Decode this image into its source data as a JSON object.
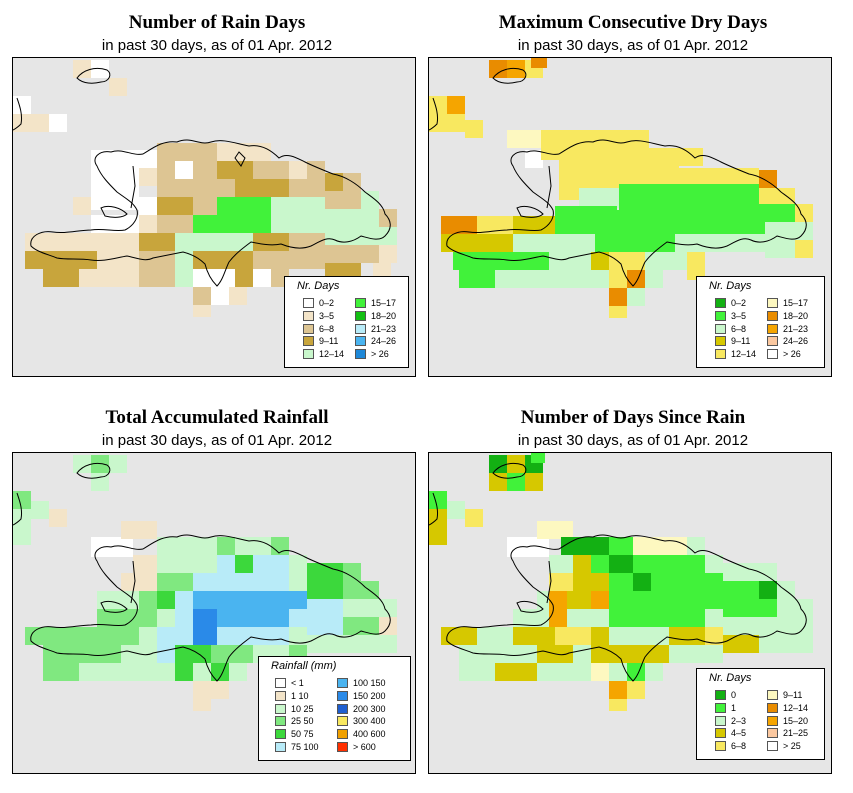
{
  "panels": [
    {
      "title": "Number of Rain Days",
      "subtitle": "in past 30 days, as of  01 Apr. 2012",
      "legend_title": "Nr. Days",
      "legend": [
        {
          "label": "0–2",
          "color": "#ffffff"
        },
        {
          "label": "3–5",
          "color": "#f3e4c8"
        },
        {
          "label": "6–8",
          "color": "#ddc593"
        },
        {
          "label": "9–11",
          "color": "#c8a53c"
        },
        {
          "label": "12–14",
          "color": "#c9f7cc"
        },
        {
          "label": "15–17",
          "color": "#41f23a"
        },
        {
          "label": "18–20",
          "color": "#13c013"
        },
        {
          "label": "21–23",
          "color": "#b8ebf8"
        },
        {
          "label": "24–26",
          "color": "#4ab4f0"
        },
        {
          "label": "> 26",
          "color": "#1e88d8"
        }
      ]
    },
    {
      "title": "Maximum Consecutive Dry Days",
      "subtitle": "in past 30 days, as of  01 Apr. 2012",
      "legend_title": "Nr. Days",
      "legend": [
        {
          "label": "0–2",
          "color": "#13b013"
        },
        {
          "label": "3–5",
          "color": "#41f23a"
        },
        {
          "label": "6–8",
          "color": "#c9f7cc"
        },
        {
          "label": "9–11",
          "color": "#d6c800"
        },
        {
          "label": "12–14",
          "color": "#f8e860"
        },
        {
          "label": "15–17",
          "color": "#fdf8c0"
        },
        {
          "label": "18–20",
          "color": "#e98c00"
        },
        {
          "label": "21–23",
          "color": "#f5a500"
        },
        {
          "label": "24–26",
          "color": "#fbc8a0"
        },
        {
          "label": "> 26",
          "color": "#ffffff"
        }
      ]
    },
    {
      "title": "Total Accumulated Rainfall",
      "subtitle": "in past 30 days, as of  01 Apr. 2012",
      "legend_title": "Rainfall (mm)",
      "legend": [
        {
          "label": "< 1",
          "color": "#ffffff"
        },
        {
          "label": "1    10",
          "color": "#f3e4c8"
        },
        {
          "label": "10    25",
          "color": "#c9f7cc"
        },
        {
          "label": "25    50",
          "color": "#80e880"
        },
        {
          "label": "50    75",
          "color": "#3cd83c"
        },
        {
          "label": "75  100",
          "color": "#b8ebf8"
        },
        {
          "label": "100  150",
          "color": "#4ab4f0"
        },
        {
          "label": "150  200",
          "color": "#2a8ae8"
        },
        {
          "label": "200  300",
          "color": "#1e5ed0"
        },
        {
          "label": "300  400",
          "color": "#f8e860"
        },
        {
          "label": "400  600",
          "color": "#f0a000"
        },
        {
          "label": "> 600",
          "color": "#ff3000"
        }
      ]
    },
    {
      "title": "Number of Days Since Rain",
      "subtitle": "in past 30 days, as of  01 Apr. 2012",
      "legend_title": "Nr. Days",
      "legend": [
        {
          "label": "0",
          "color": "#13b013"
        },
        {
          "label": "1",
          "color": "#41f23a"
        },
        {
          "label": "2–3",
          "color": "#c9f7cc"
        },
        {
          "label": "4–5",
          "color": "#d6c800"
        },
        {
          "label": "6–8",
          "color": "#f8e860"
        },
        {
          "label": "9–11",
          "color": "#fdf8c0"
        },
        {
          "label": "12–14",
          "color": "#e98c00"
        },
        {
          "label": "15–20",
          "color": "#f5a500"
        },
        {
          "label": "21–25",
          "color": "#fbc8a0"
        },
        {
          "label": "> 25",
          "color": "#ffffff"
        }
      ]
    }
  ]
}
